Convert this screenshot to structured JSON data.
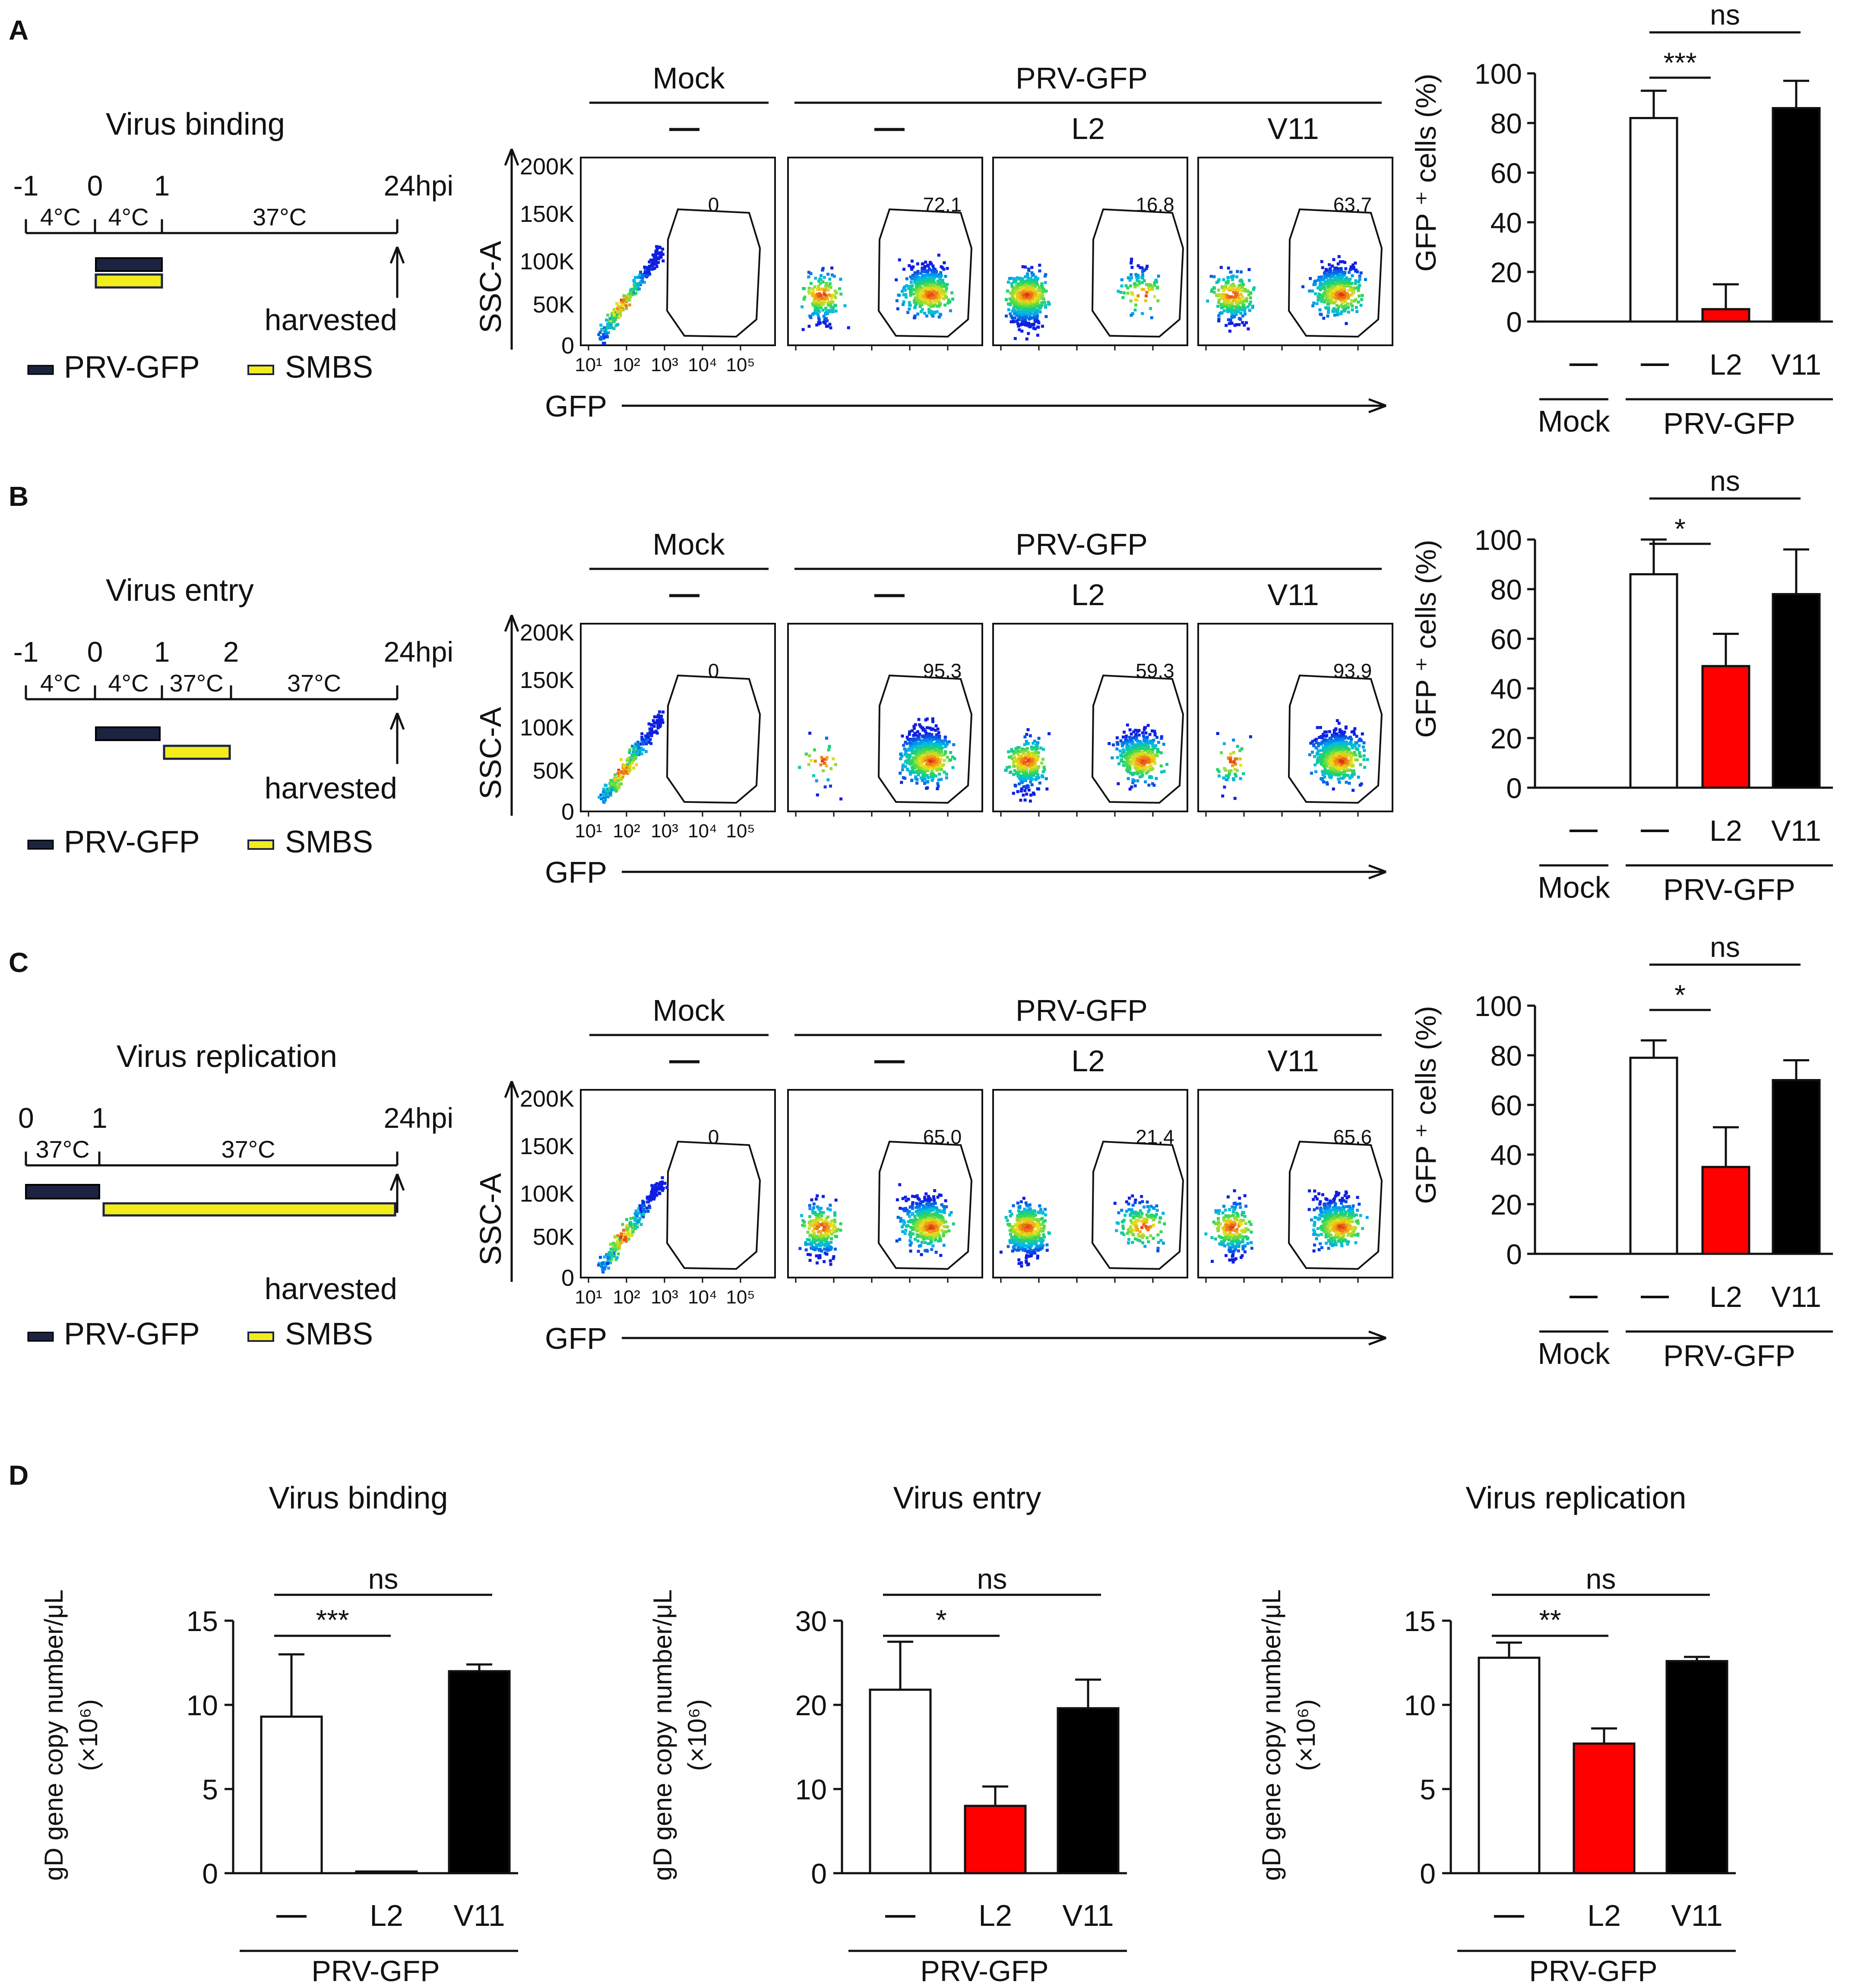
{
  "colors": {
    "prv": "#1b2340",
    "smbs": "#f2ec1c",
    "control_bar": "#ffffff",
    "l2_bar": "#ff0000",
    "v11_bar": "#000000"
  },
  "common": {
    "mock": "Mock",
    "prv_gfp": "PRV-GFP",
    "dash": "—",
    "l2": "L2",
    "v11": "V11",
    "gfp_axis": "GFP",
    "ssc_axis": "SSC-A",
    "harvested": "harvested",
    "legend_prv": "PRV-GFP",
    "legend_smbs": "SMBS",
    "y_ticks_flow": [
      "0",
      "50K",
      "100K",
      "150K",
      "200K"
    ],
    "x_ticks_flow": [
      "10¹",
      "10²",
      "10³",
      "10⁴",
      "10⁵"
    ],
    "bar_ylabel": "GFP ⁺ cells (%)",
    "bar_yticks": [
      "0",
      "20",
      "40",
      "60",
      "80",
      "100"
    ]
  },
  "panels": [
    {
      "letter": "A",
      "title": "Virus binding",
      "timeline": {
        "ticks": [
          {
            "label": "-1",
            "t": -1
          },
          {
            "label": "0",
            "t": 0
          },
          {
            "label": "1",
            "t": 1
          }
        ],
        "end_label": "24hpi",
        "segments": [
          "4°C",
          "4°C",
          "37°C"
        ]
      },
      "gates": [
        "0",
        "72.1",
        "16.8",
        "63.7"
      ],
      "chart_data": {
        "type": "bar",
        "categories": [
          "Mock —",
          "PRV-GFP —",
          "PRV-GFP L2",
          "PRV-GFP V11"
        ],
        "values": [
          0,
          82,
          5,
          86
        ],
        "errors": [
          0,
          11,
          10,
          11
        ],
        "ylabel": "GFP + cells (%)",
        "ylim": [
          0,
          100
        ],
        "sig": [
          {
            "label": "***",
            "from": 1,
            "to": 2
          },
          {
            "label": "ns",
            "from": 1,
            "to": 3
          }
        ]
      }
    },
    {
      "letter": "B",
      "title": "Virus entry",
      "timeline": {
        "ticks": [
          {
            "label": "-1",
            "t": -1
          },
          {
            "label": "0",
            "t": 0
          },
          {
            "label": "1",
            "t": 1
          },
          {
            "label": "2",
            "t": 2
          }
        ],
        "end_label": "24hpi",
        "segments": [
          "4°C",
          "4°C",
          "37°C",
          "37°C"
        ]
      },
      "gates": [
        "0",
        "95.3",
        "59.3",
        "93.9"
      ],
      "chart_data": {
        "type": "bar",
        "categories": [
          "Mock —",
          "PRV-GFP —",
          "PRV-GFP L2",
          "PRV-GFP V11"
        ],
        "values": [
          0,
          86,
          49,
          78
        ],
        "errors": [
          0,
          14,
          13,
          18
        ],
        "ylabel": "GFP + cells (%)",
        "ylim": [
          0,
          100
        ],
        "sig": [
          {
            "label": "*",
            "from": 1,
            "to": 2
          },
          {
            "label": "ns",
            "from": 1,
            "to": 3
          }
        ]
      }
    },
    {
      "letter": "C",
      "title": "Virus replication",
      "timeline": {
        "ticks": [
          {
            "label": "0",
            "t": 0
          },
          {
            "label": "1",
            "t": 1
          }
        ],
        "end_label": "24hpi",
        "segments": [
          "37°C",
          "37°C"
        ]
      },
      "gates": [
        "0",
        "65.0",
        "21.4",
        "65.6"
      ],
      "chart_data": {
        "type": "bar",
        "categories": [
          "Mock —",
          "PRV-GFP —",
          "PRV-GFP L2",
          "PRV-GFP V11"
        ],
        "values": [
          0,
          79,
          35,
          70
        ],
        "errors": [
          0,
          7,
          16,
          8
        ],
        "ylabel": "GFP + cells (%)",
        "ylim": [
          0,
          100
        ],
        "sig": [
          {
            "label": "*",
            "from": 1,
            "to": 2
          },
          {
            "label": "ns",
            "from": 1,
            "to": 3
          }
        ]
      }
    }
  ],
  "panel_d": {
    "letter": "D",
    "ylabel_line1": "gD gene copy number/μL",
    "ylabel_line2": "(×10⁶)",
    "group_label": "PRV-GFP",
    "chart_data": [
      {
        "type": "bar",
        "title": "Virus binding",
        "categories": [
          "—",
          "L2",
          "V11"
        ],
        "values": [
          9.3,
          0.1,
          12.0
        ],
        "errors": [
          3.7,
          0,
          0.4
        ],
        "ylim": [
          0,
          15
        ],
        "yticks": [
          "0",
          "5",
          "10",
          "15"
        ],
        "ylabel": "gD gene copy number/μL (×10⁶)",
        "sig": [
          {
            "label": "***",
            "from": 0,
            "to": 1
          },
          {
            "label": "ns",
            "from": 0,
            "to": 2
          }
        ]
      },
      {
        "type": "bar",
        "title": "Virus entry",
        "categories": [
          "—",
          "L2",
          "V11"
        ],
        "values": [
          21.8,
          8.0,
          19.6
        ],
        "errors": [
          5.7,
          2.3,
          3.4
        ],
        "ylim": [
          0,
          30
        ],
        "yticks": [
          "0",
          "10",
          "20",
          "30"
        ],
        "ylabel": "gD gene copy number/μL (×10⁶)",
        "sig": [
          {
            "label": "*",
            "from": 0,
            "to": 1
          },
          {
            "label": "ns",
            "from": 0,
            "to": 2
          }
        ]
      },
      {
        "type": "bar",
        "title": "Virus replication",
        "categories": [
          "—",
          "L2",
          "V11"
        ],
        "values": [
          12.8,
          7.7,
          12.6
        ],
        "errors": [
          0.9,
          0.9,
          0.25
        ],
        "ylim": [
          0,
          15
        ],
        "yticks": [
          "0",
          "5",
          "10",
          "15"
        ],
        "ylabel": "gD gene copy number/μL (×10⁶)",
        "sig": [
          {
            "label": "**",
            "from": 0,
            "to": 1
          },
          {
            "label": "ns",
            "from": 0,
            "to": 2
          }
        ]
      }
    ]
  }
}
